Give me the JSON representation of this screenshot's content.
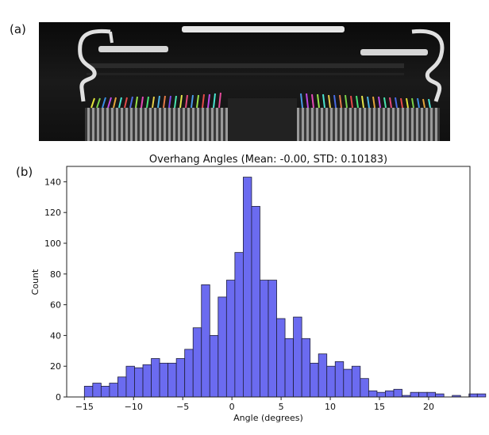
{
  "panel_labels": {
    "a": "(a)",
    "b": "(b)"
  },
  "colors": {
    "bar_fill": "#6b6bf0",
    "bar_edge": "#1f1f3a",
    "ct_background": "#0c0c0c"
  },
  "chart_data": {
    "type": "bar",
    "title": "Overhang Angles (Mean: -0.00, STD: 0.10183)",
    "xlabel": "Angle (degrees)",
    "ylabel": "Count",
    "xlim": [
      -16.8,
      24.2
    ],
    "ylim": [
      0,
      150
    ],
    "xticks": [
      -15,
      -10,
      -5,
      0,
      5,
      10,
      15,
      20
    ],
    "yticks": [
      0,
      20,
      40,
      60,
      80,
      100,
      120,
      140
    ],
    "xtick_labels": [
      "−15",
      "−10",
      "−5",
      "0",
      "5",
      "10",
      "15",
      "20"
    ],
    "ytick_labels": [
      "0",
      "20",
      "40",
      "60",
      "80",
      "100",
      "120",
      "140"
    ],
    "bin_start": -15.0,
    "bin_width": 0.85,
    "values": [
      7,
      9,
      7,
      9,
      13,
      20,
      19,
      21,
      25,
      22,
      22,
      25,
      31,
      45,
      73,
      40,
      65,
      76,
      94,
      143,
      124,
      76,
      76,
      51,
      38,
      52,
      38,
      22,
      28,
      20,
      23,
      18,
      20,
      12,
      4,
      3,
      4,
      5,
      1,
      3,
      3,
      3,
      2,
      0,
      1,
      0,
      2,
      2
    ],
    "grid": false,
    "legend": "none"
  }
}
